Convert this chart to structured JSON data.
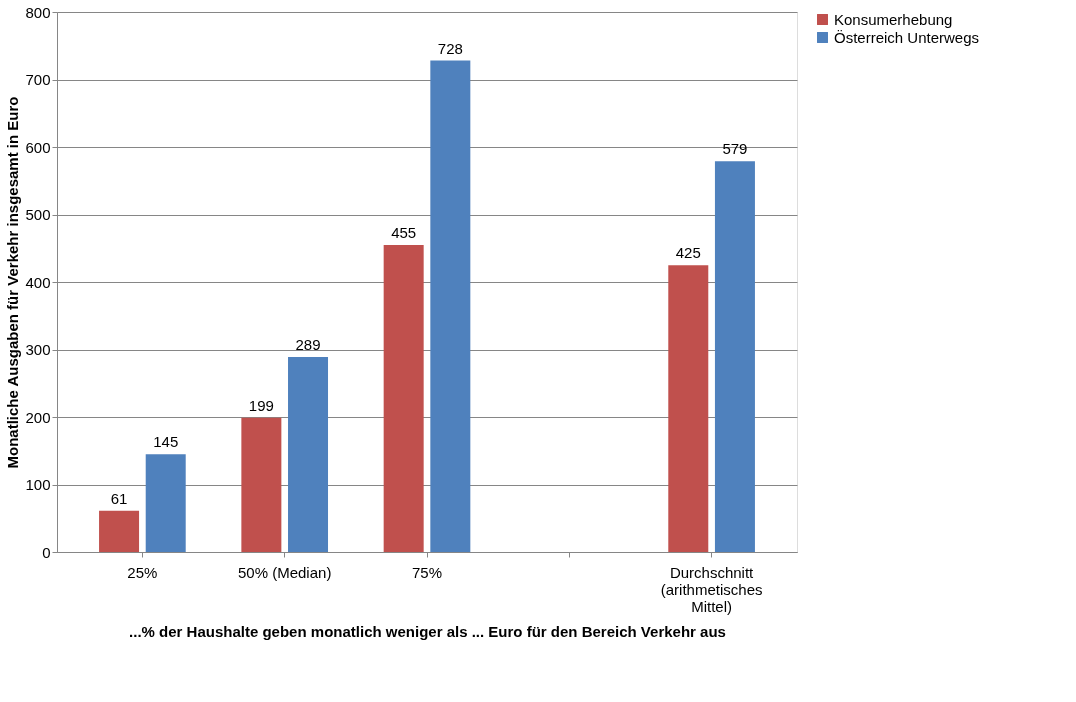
{
  "chart_data": {
    "type": "bar",
    "xlabel": "...% der Haushalte geben monatlich weniger als ... Euro für den Bereich Verkehr aus",
    "ylabel": "Monatliche Ausgaben für Verkehr  insgesamt in Euro",
    "categories": [
      "25%",
      "50% (Median)",
      "75%",
      null,
      "Durchschnitt (arithmetisches Mittel)"
    ],
    "series": [
      {
        "name": "Konsumerhebung",
        "color": "#c0504d",
        "values": [
          61,
          199,
          455,
          null,
          425
        ]
      },
      {
        "name": "Österreich Unterwegs",
        "color": "#4f81bd",
        "values": [
          145,
          289,
          728,
          null,
          579
        ]
      }
    ],
    "ylim": [
      0,
      800
    ],
    "yticks": [
      0,
      100,
      200,
      300,
      400,
      500,
      600,
      700,
      800
    ],
    "grid": "y",
    "legend": "right",
    "data_labels": true
  }
}
